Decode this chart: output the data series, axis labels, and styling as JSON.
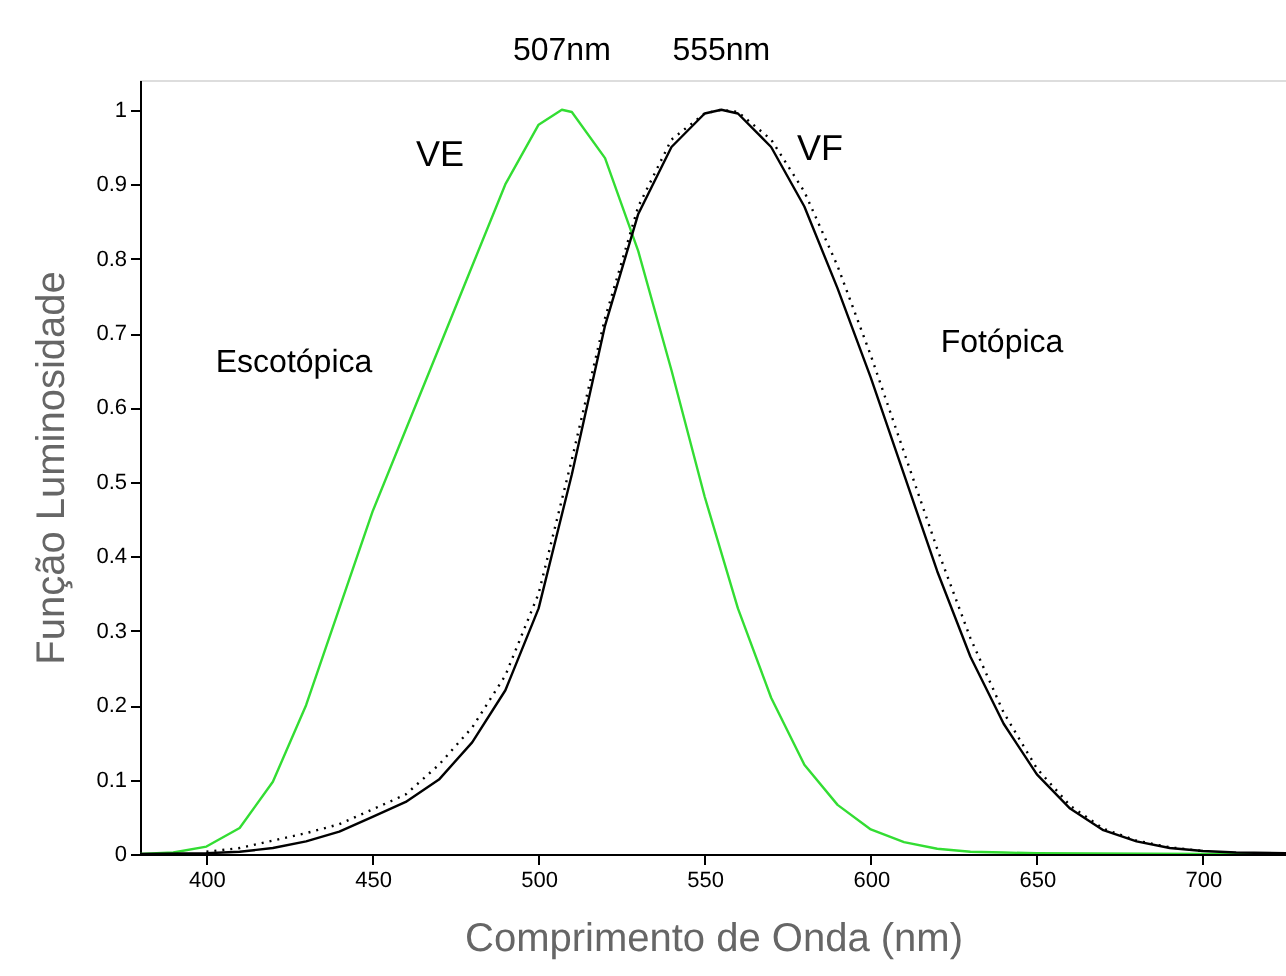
{
  "chart_data": {
    "type": "line",
    "xlabel": "Comprimento de Onda (nm)",
    "ylabel": "Função Luminosidade",
    "xlim": [
      380,
      725
    ],
    "ylim": [
      0,
      1.04
    ],
    "xticks": [
      400,
      450,
      500,
      550,
      600,
      650,
      700
    ],
    "yticks": [
      0,
      0.1,
      0.2,
      0.3,
      0.4,
      0.5,
      0.6,
      0.7,
      0.8,
      0.9,
      1
    ],
    "grid": false,
    "marker": "none",
    "series": [
      {
        "color": "#33dd33",
        "line_style": "solid",
        "x": [
          380,
          390,
          400,
          410,
          420,
          430,
          440,
          450,
          460,
          470,
          480,
          490,
          500,
          507,
          510,
          520,
          530,
          540,
          550,
          560,
          570,
          580,
          590,
          600,
          610,
          620,
          630,
          640,
          650,
          700,
          725
        ],
        "values": [
          0.0,
          0.002,
          0.01,
          0.035,
          0.097,
          0.2,
          0.33,
          0.46,
          0.57,
          0.68,
          0.79,
          0.9,
          0.98,
          1.0,
          0.997,
          0.935,
          0.81,
          0.65,
          0.48,
          0.33,
          0.21,
          0.12,
          0.066,
          0.033,
          0.016,
          0.007,
          0.003,
          0.002,
          0.001,
          0.0,
          0.0
        ]
      },
      {
        "color": "#000000",
        "line_style": "solid",
        "x": [
          380,
          400,
          410,
          420,
          430,
          440,
          450,
          460,
          470,
          480,
          490,
          500,
          510,
          520,
          530,
          540,
          550,
          555,
          560,
          570,
          580,
          590,
          600,
          610,
          620,
          630,
          640,
          650,
          660,
          670,
          680,
          690,
          700,
          710,
          725
        ],
        "values": [
          0.0,
          0.001,
          0.003,
          0.008,
          0.017,
          0.03,
          0.05,
          0.07,
          0.1,
          0.15,
          0.22,
          0.33,
          0.51,
          0.71,
          0.86,
          0.95,
          0.995,
          1.0,
          0.995,
          0.95,
          0.87,
          0.76,
          0.64,
          0.51,
          0.38,
          0.265,
          0.175,
          0.107,
          0.061,
          0.032,
          0.017,
          0.008,
          0.004,
          0.002,
          0.001
        ]
      },
      {
        "color": "#000000",
        "line_style": "dotted",
        "x": [
          400,
          410,
          420,
          430,
          440,
          450,
          460,
          470,
          480,
          490,
          500,
          510,
          520,
          530,
          540,
          550,
          555,
          560,
          570,
          580,
          590,
          600,
          610,
          620,
          630,
          640,
          650,
          660,
          670,
          680,
          690,
          700
        ],
        "values": [
          0.003,
          0.008,
          0.018,
          0.028,
          0.04,
          0.06,
          0.08,
          0.12,
          0.17,
          0.24,
          0.35,
          0.53,
          0.72,
          0.87,
          0.96,
          0.995,
          1.0,
          0.997,
          0.96,
          0.89,
          0.79,
          0.67,
          0.54,
          0.41,
          0.29,
          0.19,
          0.115,
          0.065,
          0.034,
          0.018,
          0.009,
          0.004
        ]
      }
    ],
    "annotations": [
      {
        "text": "507nm",
        "x": 507,
        "y": 1.0
      },
      {
        "text": "555nm",
        "x": 555,
        "y": 1.0
      },
      "VE",
      "VF",
      "Escotópica",
      "Fotópica"
    ]
  }
}
